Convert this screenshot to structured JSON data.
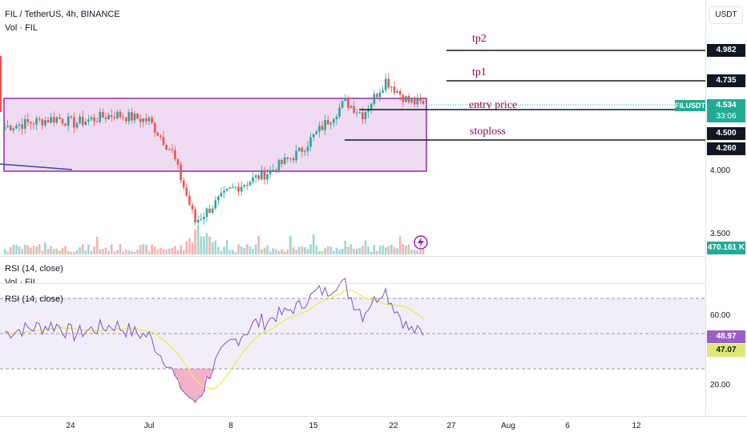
{
  "header": {
    "symbol_line": "FIL / TetherUS, 4h, BINANCE",
    "vol_label": "Vol · FIL",
    "rsi_label": "RSI (14, close)",
    "rsi_overlay_label": "RSI (14, close)",
    "vol_pane_label": "Vol · FIL"
  },
  "axis": {
    "currency_button": "USDT",
    "price_ticks": [
      "4.000",
      "3.500"
    ],
    "rsi_ticks": [
      "60.00",
      "20.00"
    ],
    "x_ticks": [
      "24",
      "Jul",
      "8",
      "15",
      "22",
      "27",
      "Aug",
      "6",
      "12"
    ]
  },
  "tags": {
    "tp2": "4.982",
    "tp1": "4.735",
    "current_symbol": "FILUSDT",
    "current_price": "4.534",
    "countdown": "33:06",
    "entry": "4.500",
    "stoploss": "4.260",
    "volume": "470.161 K",
    "rsi": "48.97",
    "rsi_ma": "47.07"
  },
  "annotations": {
    "tp2": "tp2",
    "tp1": "tp1",
    "entry": "entry price",
    "stoploss": "stoploss"
  },
  "colors": {
    "up": "#26a69a",
    "down": "#ef5350",
    "box_fill": "#e1bee7",
    "box_stroke": "#9c27b0",
    "rsi_line": "#7e57c2",
    "rsi_ma": "#e8ea5a",
    "annotation_text": "#880e4f",
    "tag_dark": "#131722",
    "tag_teal": "#22ab94",
    "tag_purple": "#9c5fc7",
    "tag_yellow": "#dce775"
  },
  "icons": {
    "lightning": "lightning-icon"
  },
  "chart_data": {
    "type": "candlestick",
    "timeframe": "4h",
    "price_levels": {
      "tp2": 4.982,
      "tp1": 4.735,
      "entry": 4.5,
      "stoploss": 4.26,
      "current": 4.534
    },
    "range_box": {
      "top": 4.534,
      "bottom": 4.02
    },
    "key_points": [
      {
        "t": "Jun 19",
        "close": 4.35
      },
      {
        "t": "Jun 22",
        "close": 4.42
      },
      {
        "t": "Jun 24",
        "close": 4.38
      },
      {
        "t": "Jun 27",
        "close": 4.45
      },
      {
        "t": "Jun 30",
        "close": 4.4
      },
      {
        "t": "Jul 2",
        "close": 4.15
      },
      {
        "t": "Jul 4",
        "close": 3.6
      },
      {
        "t": "Jul 7",
        "close": 3.85
      },
      {
        "t": "Jul 10",
        "close": 4.0
      },
      {
        "t": "Jul 13",
        "close": 4.15
      },
      {
        "t": "Jul 17",
        "close": 4.55
      },
      {
        "t": "Jul 19",
        "close": 4.45
      },
      {
        "t": "Jul 21",
        "close": 4.72
      },
      {
        "t": "Jul 23",
        "close": 4.55
      },
      {
        "t": "Jul 24",
        "close": 4.534
      }
    ],
    "rsi": {
      "last": 48.97,
      "ma_last": 47.07,
      "band_upper": 70,
      "band_lower": 30
    }
  }
}
